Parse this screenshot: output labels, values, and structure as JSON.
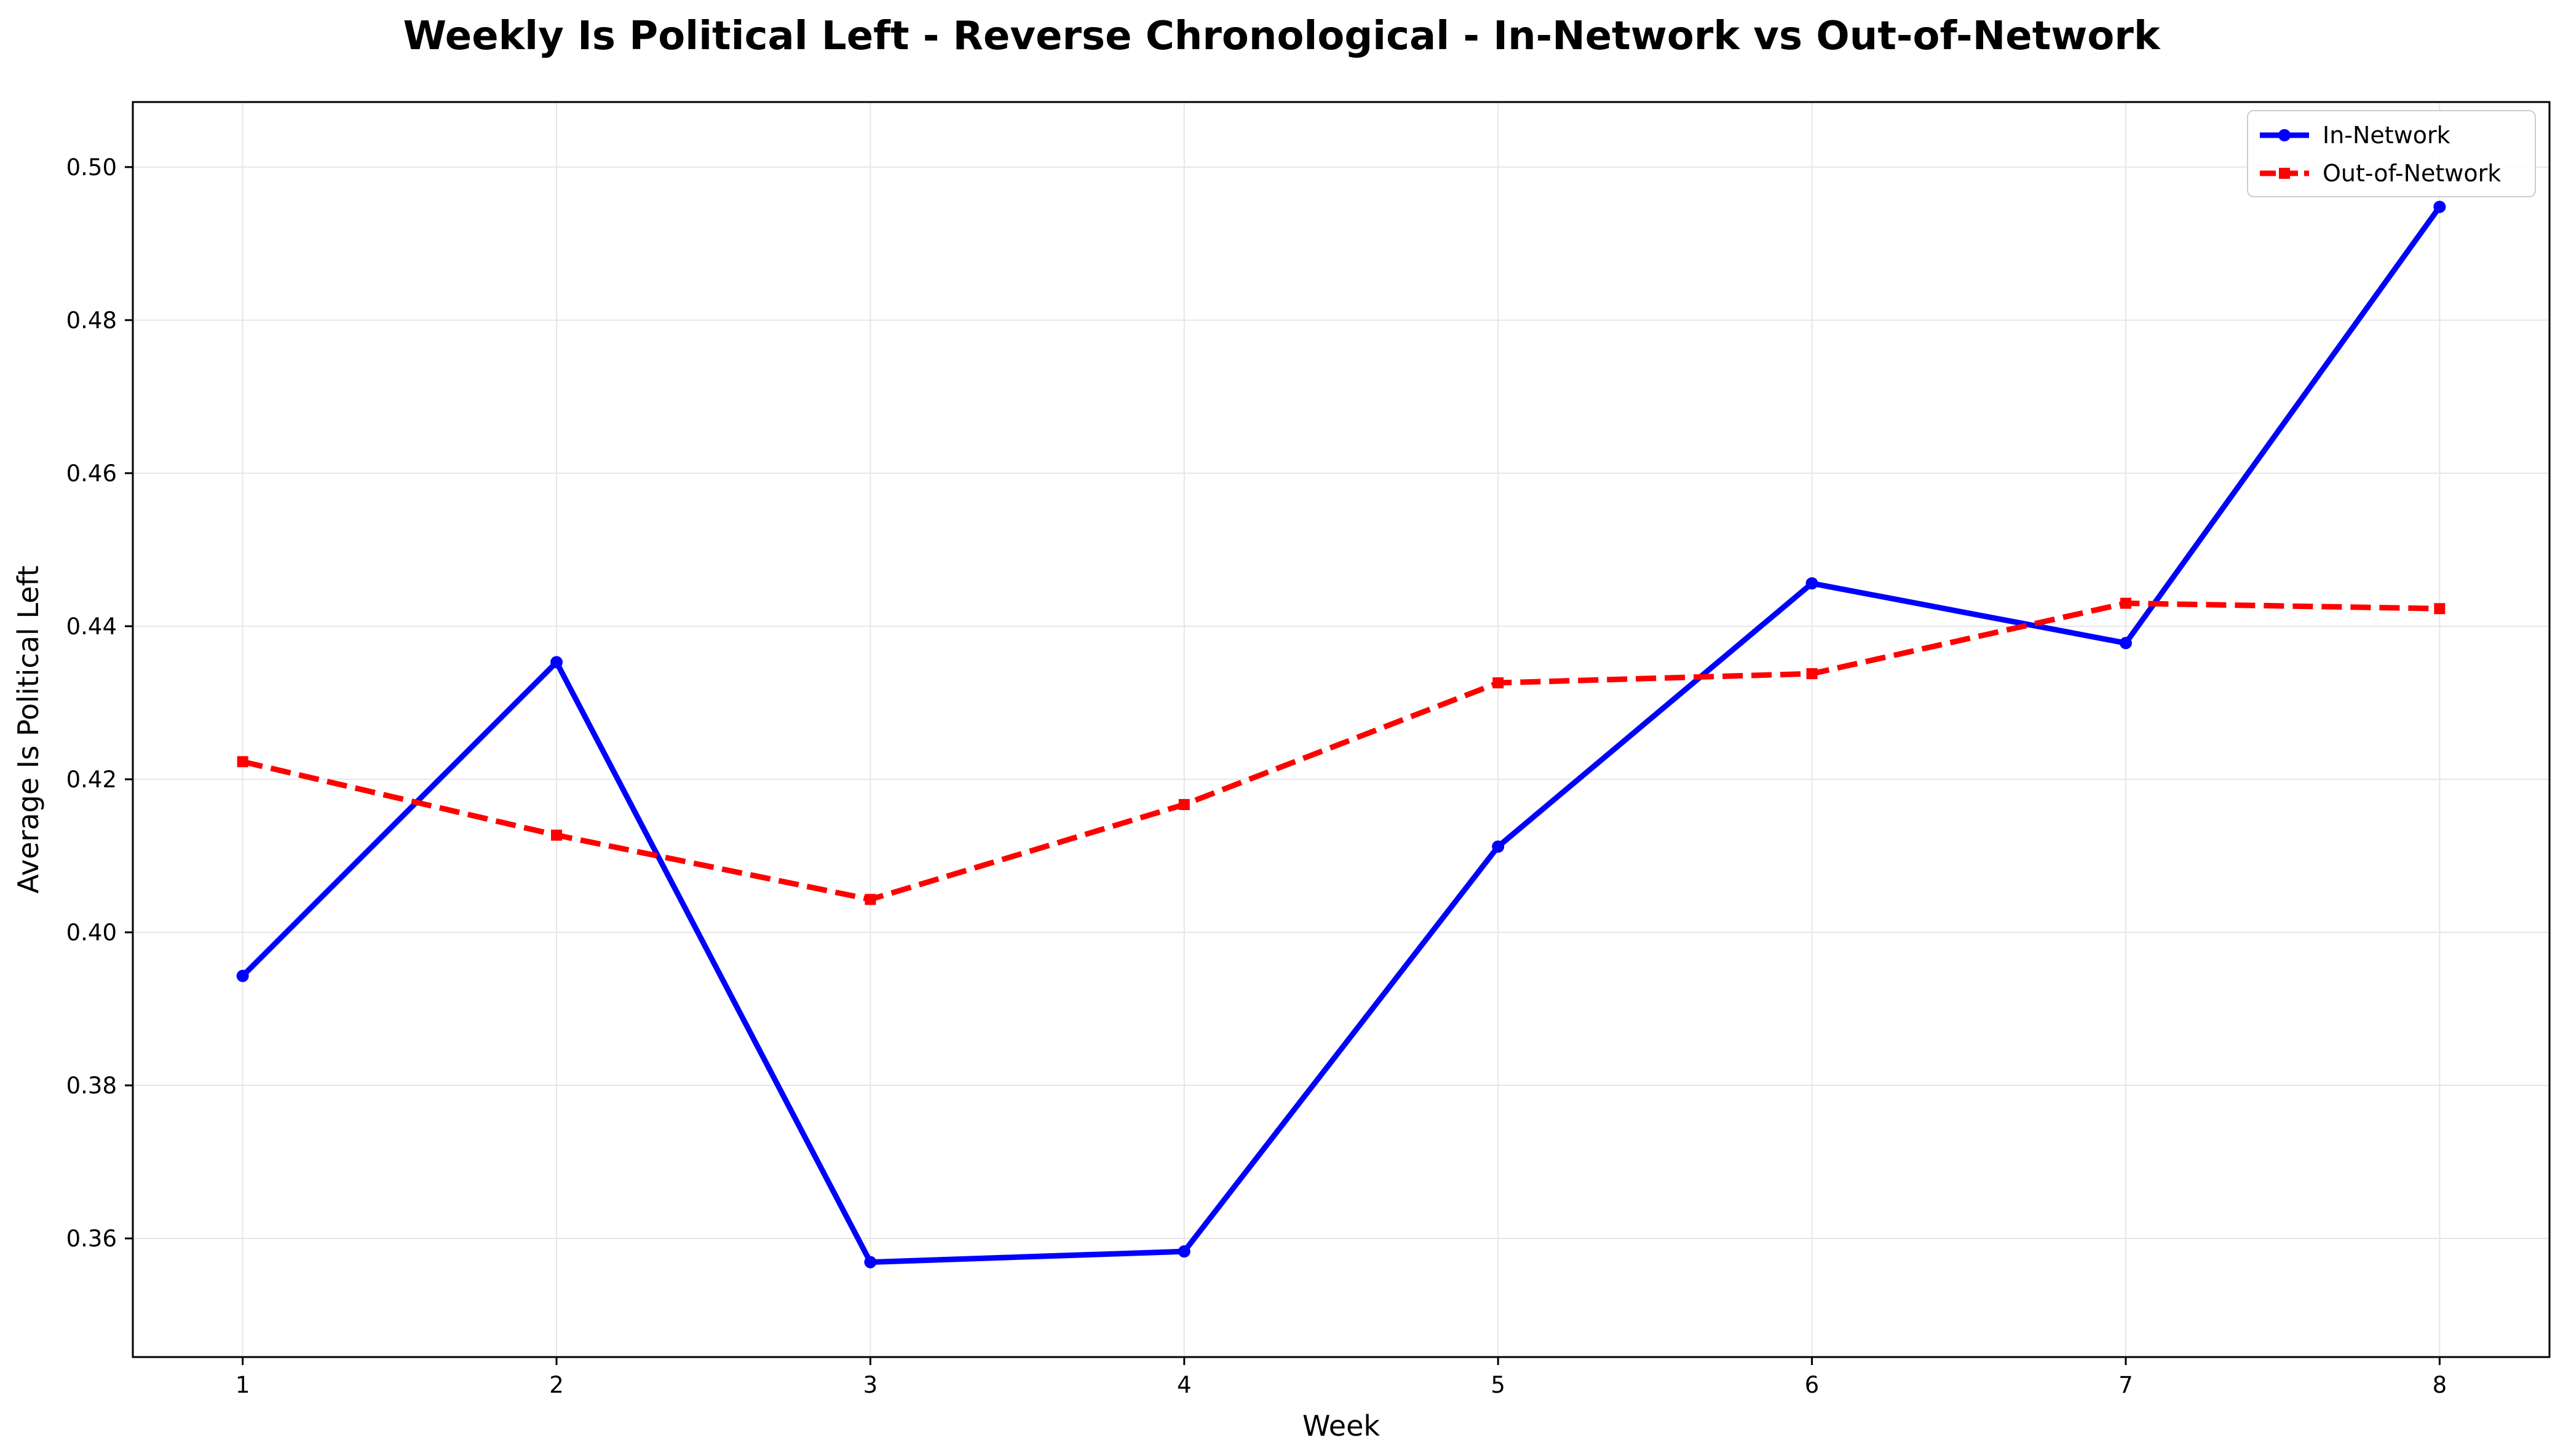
{
  "chart_data": {
    "type": "line",
    "title": "Weekly Is Political Left - Reverse Chronological - In-Network vs Out-of-Network",
    "xlabel": "Week",
    "ylabel": "Average Is Political Left",
    "x": [
      1,
      2,
      3,
      4,
      5,
      6,
      7,
      8
    ],
    "x_ticks": [
      "1",
      "2",
      "3",
      "4",
      "5",
      "6",
      "7",
      "8"
    ],
    "xlim": [
      0.65,
      8.35
    ],
    "y_ticks": [
      "0.36",
      "0.38",
      "0.40",
      "0.42",
      "0.44",
      "0.46",
      "0.48",
      "0.50"
    ],
    "ylim": [
      0.3445,
      0.5085
    ],
    "grid": true,
    "legend_position": "top-right",
    "series": [
      {
        "name": "In-Network",
        "values": [
          0.3943,
          0.4353,
          0.3569,
          0.3583,
          0.4112,
          0.4456,
          0.4378,
          0.4948
        ],
        "color": "#0000ff",
        "line_style": "solid",
        "marker": "circle"
      },
      {
        "name": "Out-of-Network",
        "values": [
          0.4223,
          0.4127,
          0.4043,
          0.4167,
          0.4326,
          0.4338,
          0.443,
          0.4423
        ],
        "color": "#ff0000",
        "line_style": "dashed",
        "marker": "square"
      }
    ]
  }
}
